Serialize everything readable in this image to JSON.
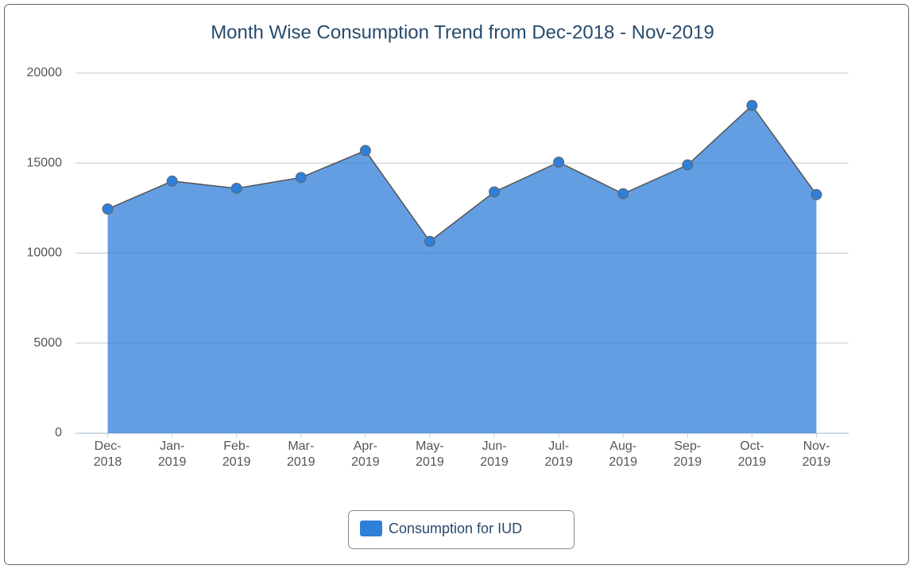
{
  "chart_data": {
    "type": "area",
    "title": "Month Wise Consumption Trend from Dec-2018 - Nov-2019",
    "categories": [
      "Dec-2018",
      "Jan-2019",
      "Feb-2019",
      "Mar-2019",
      "Apr-2019",
      "May-2019",
      "Jun-2019",
      "Jul-2019",
      "Aug-2019",
      "Sep-2019",
      "Oct-2019",
      "Nov-2019"
    ],
    "series": [
      {
        "name": "Consumption for IUD",
        "color": "#2f7ed8",
        "values": [
          12450,
          14000,
          13600,
          14200,
          15700,
          10650,
          13400,
          15050,
          13300,
          14900,
          18200,
          13250
        ]
      }
    ],
    "ylim": [
      0,
      20000
    ],
    "yticks": [
      0,
      5000,
      10000,
      15000,
      20000
    ],
    "grid": true,
    "legend": "bottom"
  }
}
